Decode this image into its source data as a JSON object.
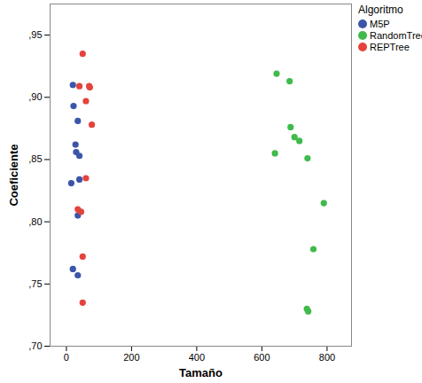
{
  "chart_data": {
    "type": "scatter",
    "x_label": "Tamaño",
    "y_label": "Coeficiente",
    "legend_title": "Algoritmo",
    "legend": "top-right",
    "grid": false,
    "xlim": [
      -50,
      875
    ],
    "xticks": [
      0,
      200,
      400,
      600,
      800
    ],
    "ylim": [
      0.7,
      0.975
    ],
    "yticks": [
      {
        "value": 0.7,
        "label": ",70"
      },
      {
        "value": 0.75,
        "label": ",75"
      },
      {
        "value": 0.8,
        "label": ",80"
      },
      {
        "value": 0.85,
        "label": ",85"
      },
      {
        "value": 0.9,
        "label": ",90"
      },
      {
        "value": 0.95,
        "label": ",95"
      }
    ],
    "series": [
      {
        "name": "M5P",
        "color": "#3b55a8",
        "marker": "circle",
        "x": [
          20,
          22,
          35,
          28,
          30,
          40,
          40,
          15,
          35,
          20,
          35
        ],
        "values": [
          0.91,
          0.893,
          0.881,
          0.862,
          0.856,
          0.853,
          0.834,
          0.831,
          0.805,
          0.762,
          0.757
        ]
      },
      {
        "name": "RandomTree",
        "color": "#3fba4b",
        "marker": "circle",
        "x": [
          645,
          685,
          688,
          700,
          715,
          740,
          640,
          790,
          758,
          738,
          742
        ],
        "values": [
          0.919,
          0.913,
          0.876,
          0.868,
          0.865,
          0.851,
          0.855,
          0.815,
          0.778,
          0.73,
          0.728
        ]
      },
      {
        "name": "REPTree",
        "color": "#e4433c",
        "marker": "circle",
        "x": [
          50,
          40,
          70,
          72,
          60,
          78,
          60,
          35,
          45,
          50,
          50
        ],
        "values": [
          0.935,
          0.909,
          0.909,
          0.908,
          0.897,
          0.878,
          0.835,
          0.81,
          0.808,
          0.772,
          0.735
        ]
      }
    ]
  }
}
